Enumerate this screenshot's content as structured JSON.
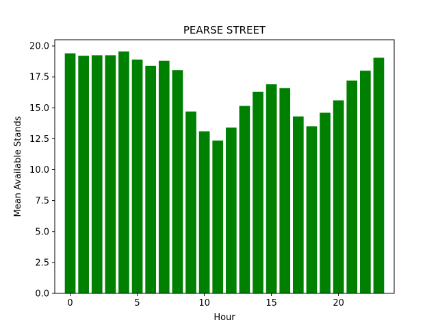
{
  "chart_data": {
    "type": "bar",
    "title": "PEARSE STREET",
    "xlabel": "Hour",
    "ylabel": "Mean Available Stands",
    "x": [
      0,
      1,
      2,
      3,
      4,
      5,
      6,
      7,
      8,
      9,
      10,
      11,
      12,
      13,
      14,
      15,
      16,
      17,
      18,
      19,
      20,
      21,
      22,
      23
    ],
    "values": [
      19.4,
      19.2,
      19.25,
      19.25,
      19.55,
      18.9,
      18.4,
      18.8,
      18.05,
      14.7,
      13.1,
      12.35,
      13.4,
      15.15,
      16.3,
      16.9,
      16.6,
      14.3,
      13.5,
      14.6,
      15.6,
      17.2,
      18.0,
      19.05
    ],
    "xlim": [
      -1.15,
      24.15
    ],
    "ylim": [
      0,
      20.5
    ],
    "xticks": [
      0,
      5,
      10,
      15,
      20
    ],
    "yticks": [
      0,
      2.5,
      5,
      7.5,
      10,
      12.5,
      15,
      17.5,
      20
    ],
    "ytick_labels": [
      "0.0",
      "2.5",
      "5.0",
      "7.5",
      "10.0",
      "12.5",
      "15.0",
      "17.5",
      "20.0"
    ],
    "bar_color": "#008000",
    "grid": false,
    "legend": "none"
  }
}
